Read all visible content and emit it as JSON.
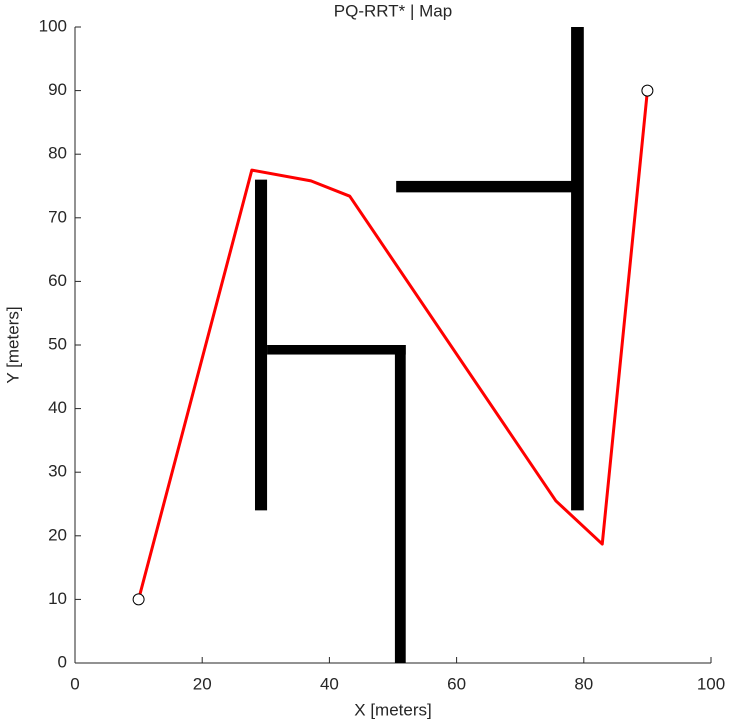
{
  "chart_data": {
    "type": "line",
    "title": "PQ-RRT* | Map",
    "x_label": "X [meters]",
    "y_label": "Y [meters]",
    "xlim": [
      0,
      100
    ],
    "ylim": [
      0,
      100
    ],
    "xticks": [
      0,
      20,
      40,
      60,
      80,
      100
    ],
    "yticks": [
      0,
      10,
      20,
      30,
      40,
      50,
      60,
      70,
      80,
      90,
      100
    ],
    "series": [
      {
        "color": "#ff0000",
        "x": [
          10,
          27.8,
          37.1,
          43.2,
          75.6,
          82.9,
          90
        ],
        "values": [
          10,
          77.5,
          75.8,
          73.4,
          25.5,
          18.7,
          90
        ]
      }
    ],
    "endpoints": {
      "x": [
        10,
        90
      ],
      "values": [
        10,
        90
      ]
    },
    "obstacles": [
      {
        "x": [
          28.3,
          30.2
        ],
        "y": [
          24,
          76
        ]
      },
      {
        "x": [
          30.2,
          52
        ],
        "y": [
          48.5,
          50
        ]
      },
      {
        "x": [
          50.3,
          52
        ],
        "y": [
          0,
          50
        ]
      },
      {
        "x": [
          50.5,
          79
        ],
        "y": [
          74,
          75.8
        ]
      },
      {
        "x": [
          78,
          80
        ],
        "y": [
          24,
          100
        ]
      }
    ],
    "obstacle_color": "#000000"
  }
}
